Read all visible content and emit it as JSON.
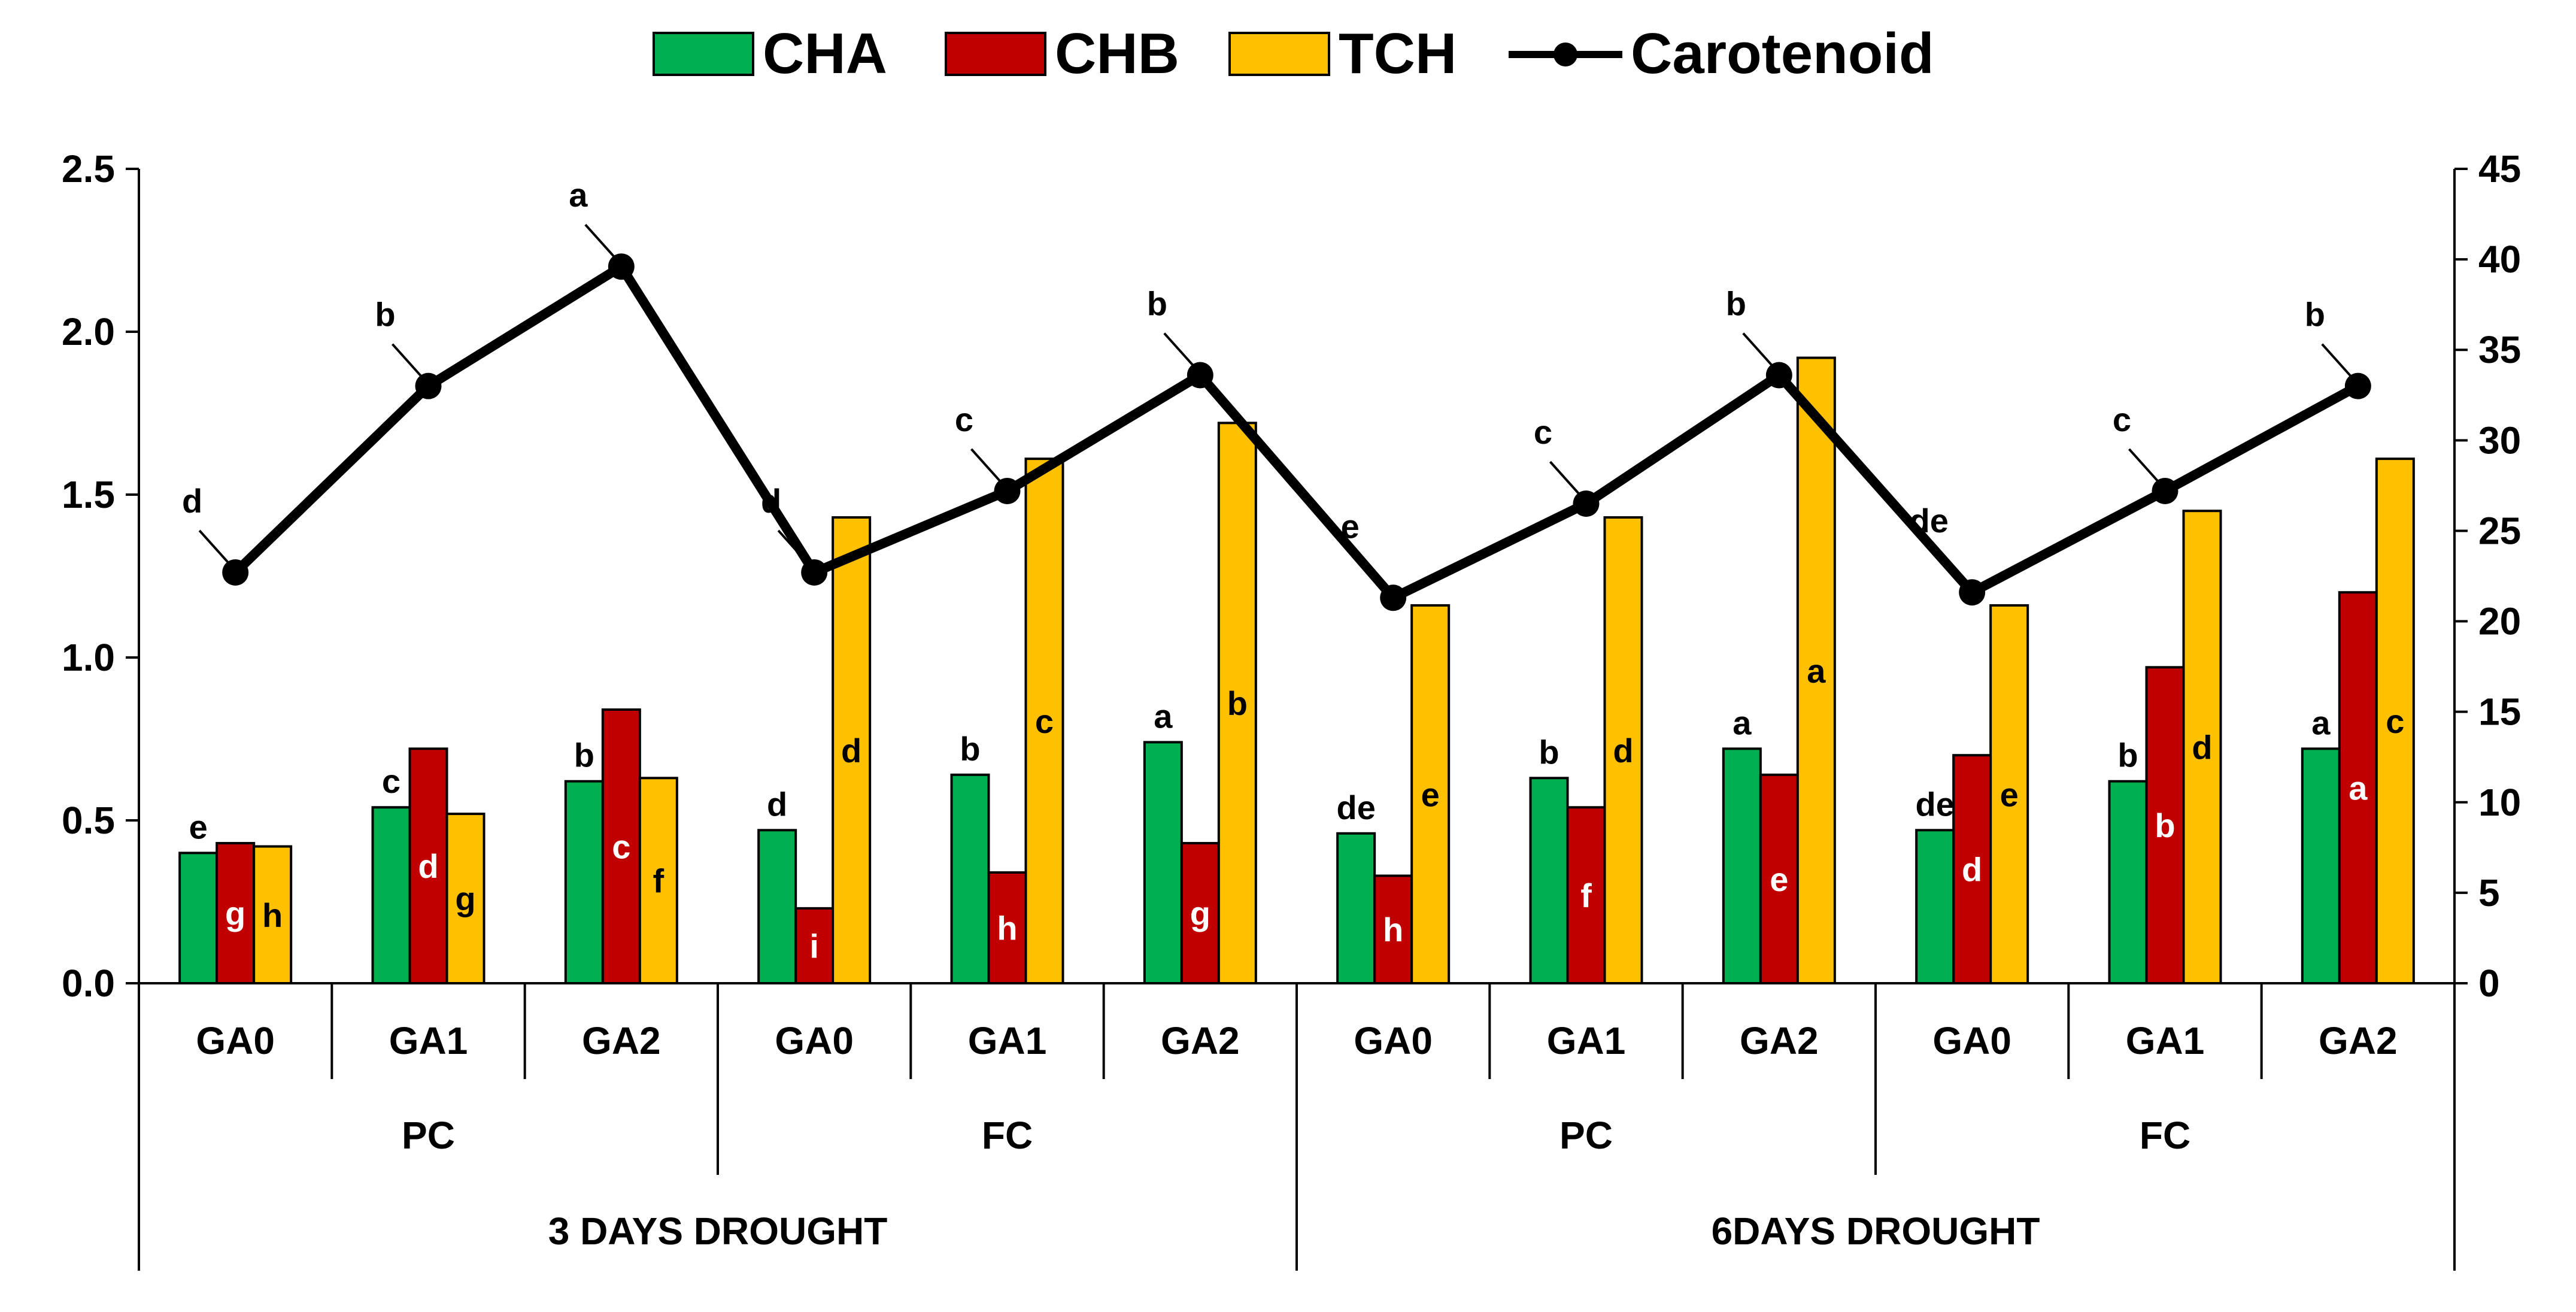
{
  "legend": {
    "cha": {
      "label": "CHA",
      "color": "#00B050"
    },
    "chb": {
      "label": "CHB",
      "color": "#C00000"
    },
    "tch": {
      "label": "TCH",
      "color": "#FFC000"
    },
    "carotenoid": {
      "label": "Carotenoid",
      "color": "#000000"
    }
  },
  "chart_data": {
    "type": "bar",
    "categories": [
      "GA0",
      "GA1",
      "GA2",
      "GA0",
      "GA1",
      "GA2",
      "GA0",
      "GA1",
      "GA2",
      "GA0",
      "GA1",
      "GA2"
    ],
    "groups_level1": [
      "PC",
      "FC",
      "PC",
      "FC"
    ],
    "groups_level2": [
      "3 DAYS DROUGHT",
      "6DAYS DROUGHT"
    ],
    "series": [
      {
        "name": "CHA",
        "type": "bar",
        "axis": "left",
        "color": "#00B050",
        "values": [
          0.4,
          0.54,
          0.62,
          0.47,
          0.64,
          0.74,
          0.46,
          0.63,
          0.72,
          0.47,
          0.62,
          0.72
        ],
        "letters": [
          "e",
          "c",
          "b",
          "d",
          "b",
          "a",
          "de",
          "b",
          "a",
          "de",
          "b",
          "a"
        ]
      },
      {
        "name": "CHB",
        "type": "bar",
        "axis": "left",
        "color": "#C00000",
        "values": [
          0.43,
          0.72,
          0.84,
          0.23,
          0.34,
          0.43,
          0.33,
          0.54,
          0.64,
          0.7,
          0.97,
          1.2
        ],
        "letters": [
          "g",
          "d",
          "c",
          "i",
          "h",
          "g",
          "h",
          "f",
          "e",
          "d",
          "b",
          "a"
        ]
      },
      {
        "name": "TCH",
        "type": "bar",
        "axis": "left",
        "color": "#FFC000",
        "values": [
          0.42,
          0.52,
          0.63,
          1.43,
          1.61,
          1.72,
          1.16,
          1.43,
          1.92,
          1.16,
          1.45,
          1.61
        ],
        "letters": [
          "h",
          "g",
          "f",
          "d",
          "c",
          "b",
          "e",
          "d",
          "a",
          "e",
          "d",
          "c"
        ]
      },
      {
        "name": "Carotenoid",
        "type": "line",
        "axis": "right",
        "color": "#000000",
        "values": [
          22.7,
          33.0,
          39.6,
          22.7,
          27.2,
          33.6,
          21.3,
          26.5,
          33.6,
          21.6,
          27.2,
          33.0
        ],
        "letters": [
          "d",
          "b",
          "a",
          "d",
          "c",
          "b",
          "e",
          "c",
          "b",
          "de",
          "c",
          "b"
        ]
      }
    ],
    "left_axis": {
      "min": 0,
      "max": 2.5,
      "ticks": [
        "0.0",
        "0.5",
        "1.0",
        "1.5",
        "2.0",
        "2.5"
      ]
    },
    "right_axis": {
      "min": 0,
      "max": 45,
      "ticks": [
        "0",
        "5",
        "10",
        "15",
        "20",
        "25",
        "30",
        "35",
        "40",
        "45"
      ]
    },
    "title": "",
    "xlabel": "",
    "ylabel": "",
    "grid": false
  }
}
